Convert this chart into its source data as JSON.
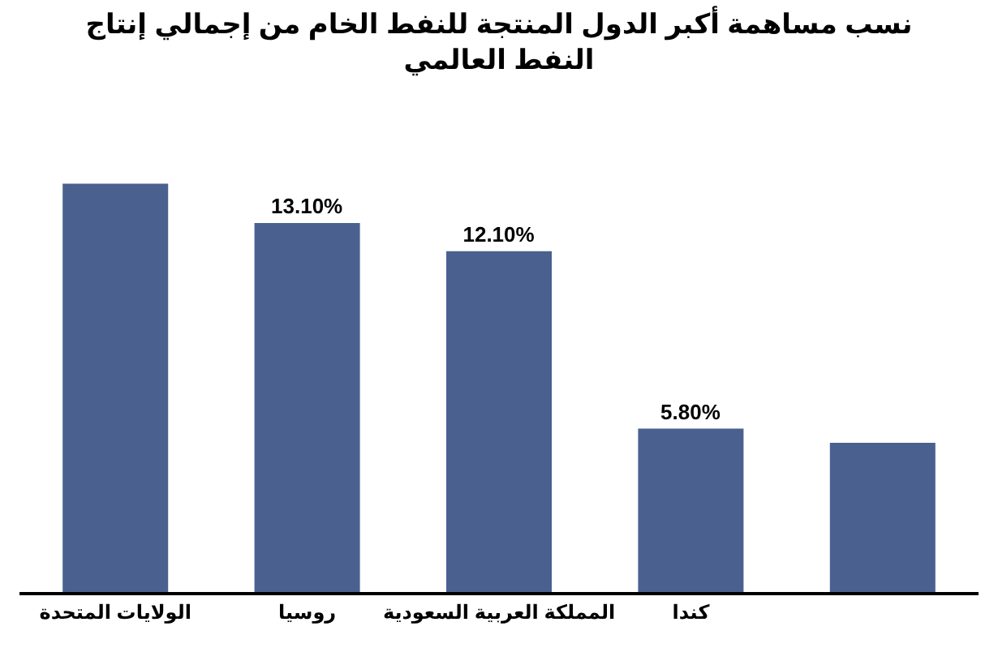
{
  "chart_data": {
    "type": "bar",
    "title": "نسب مساهمة أكبر الدول المنتجة للنفط الخام من إجمالي إنتاج\nالنفط العالمي",
    "categories": [
      "الولايات المتحدة",
      "روسيا",
      "المملكة العربية السعودية",
      "كندا",
      null
    ],
    "values": [
      14.5,
      13.1,
      12.1,
      5.8,
      5.3
    ],
    "value_labels": [
      null,
      "13.10%",
      "12.10%",
      "5.80%",
      null
    ],
    "color": "#4a6190",
    "tick_labels": "x"
  }
}
